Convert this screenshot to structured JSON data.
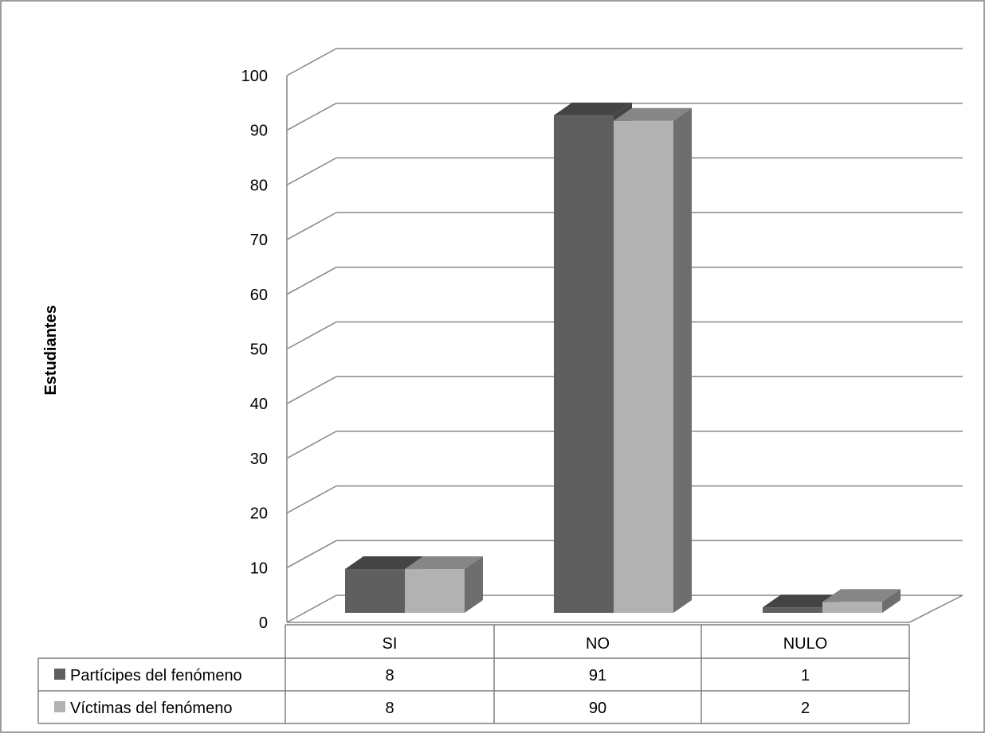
{
  "chart_data": {
    "type": "bar",
    "ylabel": "Estudiantes",
    "xlabel": "",
    "ylim": [
      0,
      100
    ],
    "yticks": [
      0,
      10,
      20,
      30,
      40,
      50,
      60,
      70,
      80,
      90,
      100
    ],
    "categories": [
      "SI",
      "NO",
      "NULO"
    ],
    "series": [
      {
        "name": "Partícipes del fenómeno",
        "values": [
          8,
          91,
          1
        ],
        "color": "#5f5f5f"
      },
      {
        "name": "Víctimas del fenómeno",
        "values": [
          8,
          90,
          2
        ],
        "color": "#b2b2b2"
      }
    ],
    "grid": true,
    "style": "3d-clustered-column",
    "legend": "data-table-below"
  }
}
